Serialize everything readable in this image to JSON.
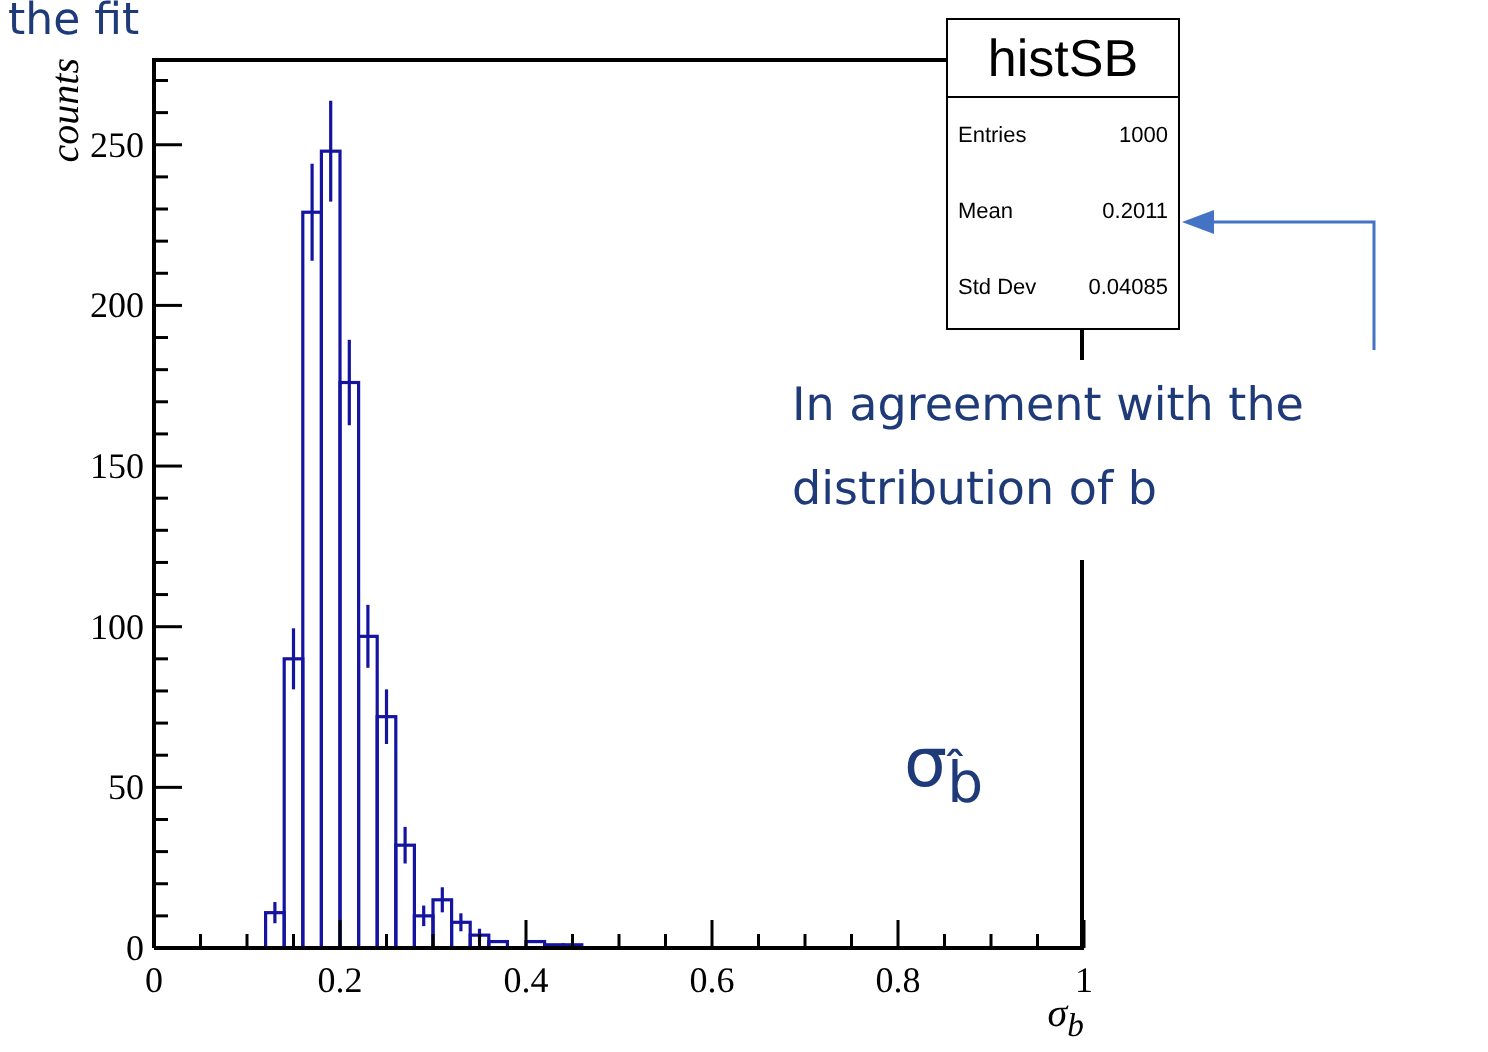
{
  "chart_data": {
    "type": "histogram",
    "title": "the fit",
    "xlabel": "σ$_{b}$",
    "ylabel": "counts",
    "bins": [
      0.12,
      0.14,
      0.16,
      0.18,
      0.2,
      0.22,
      0.24,
      0.26,
      0.28,
      0.3,
      0.32,
      0.34,
      0.36,
      0.38,
      0.4,
      0.42,
      0.44,
      0.46
    ],
    "values": [
      11,
      90,
      229,
      248,
      176,
      97,
      72,
      32,
      10,
      15,
      8,
      4,
      2,
      0,
      2,
      1,
      1
    ],
    "errors": [
      3.3,
      9.5,
      15.1,
      15.7,
      13.3,
      9.8,
      8.5,
      5.7,
      3.2,
      3.9,
      2.8,
      2,
      null,
      null,
      null,
      null,
      null
    ],
    "color": "#1414a0",
    "xlim": [
      0,
      1
    ],
    "xticks": [
      0,
      {
        "value": 0.05,
        "label": null
      },
      {
        "value": 0.1,
        "label": null
      },
      {
        "value": 0.15,
        "label": null
      },
      0.2,
      {
        "value": 0.25,
        "label": null
      },
      {
        "value": 0.3,
        "label": null
      },
      {
        "value": 0.35,
        "label": null
      },
      0.4,
      {
        "value": 0.45,
        "label": null
      },
      {
        "value": 0.5,
        "label": null
      },
      {
        "value": 0.55,
        "label": null
      },
      0.6,
      {
        "value": 0.65,
        "label": null
      },
      {
        "value": 0.7,
        "label": null
      },
      {
        "value": 0.75,
        "label": null
      },
      0.8,
      {
        "value": 0.85,
        "label": null
      },
      {
        "value": 0.9,
        "label": null
      },
      {
        "value": 0.95,
        "label": null
      },
      1
    ],
    "ylim": [
      0,
      277
    ],
    "yticks": [
      0,
      {
        "value": 10,
        "label": null
      },
      {
        "value": 20,
        "label": null
      },
      {
        "value": 30,
        "label": null
      },
      {
        "value": 40,
        "label": null
      },
      50,
      {
        "value": 60,
        "label": null
      },
      {
        "value": 70,
        "label": null
      },
      {
        "value": 80,
        "label": null
      },
      {
        "value": 90,
        "label": null
      },
      100,
      {
        "value": 110,
        "label": null
      },
      {
        "value": 120,
        "label": null
      },
      {
        "value": 130,
        "label": null
      },
      {
        "value": 140,
        "label": null
      },
      150,
      {
        "value": 160,
        "label": null
      },
      {
        "value": 170,
        "label": null
      },
      {
        "value": 180,
        "label": null
      },
      {
        "value": 190,
        "label": null
      },
      200,
      {
        "value": 210,
        "label": null
      },
      {
        "value": 220,
        "label": null
      },
      {
        "value": 230,
        "label": null
      },
      {
        "value": 240,
        "label": null
      },
      250,
      {
        "value": 260,
        "label": null
      },
      {
        "value": 270,
        "label": null
      }
    ],
    "annotations": [
      "In agreement with the distribution of b",
      "σ$_{b̂}$",
      "histSB",
      "Entries",
      "1000",
      "Mean",
      "0.2011",
      "Std Dev",
      "0.04085"
    ]
  }
}
